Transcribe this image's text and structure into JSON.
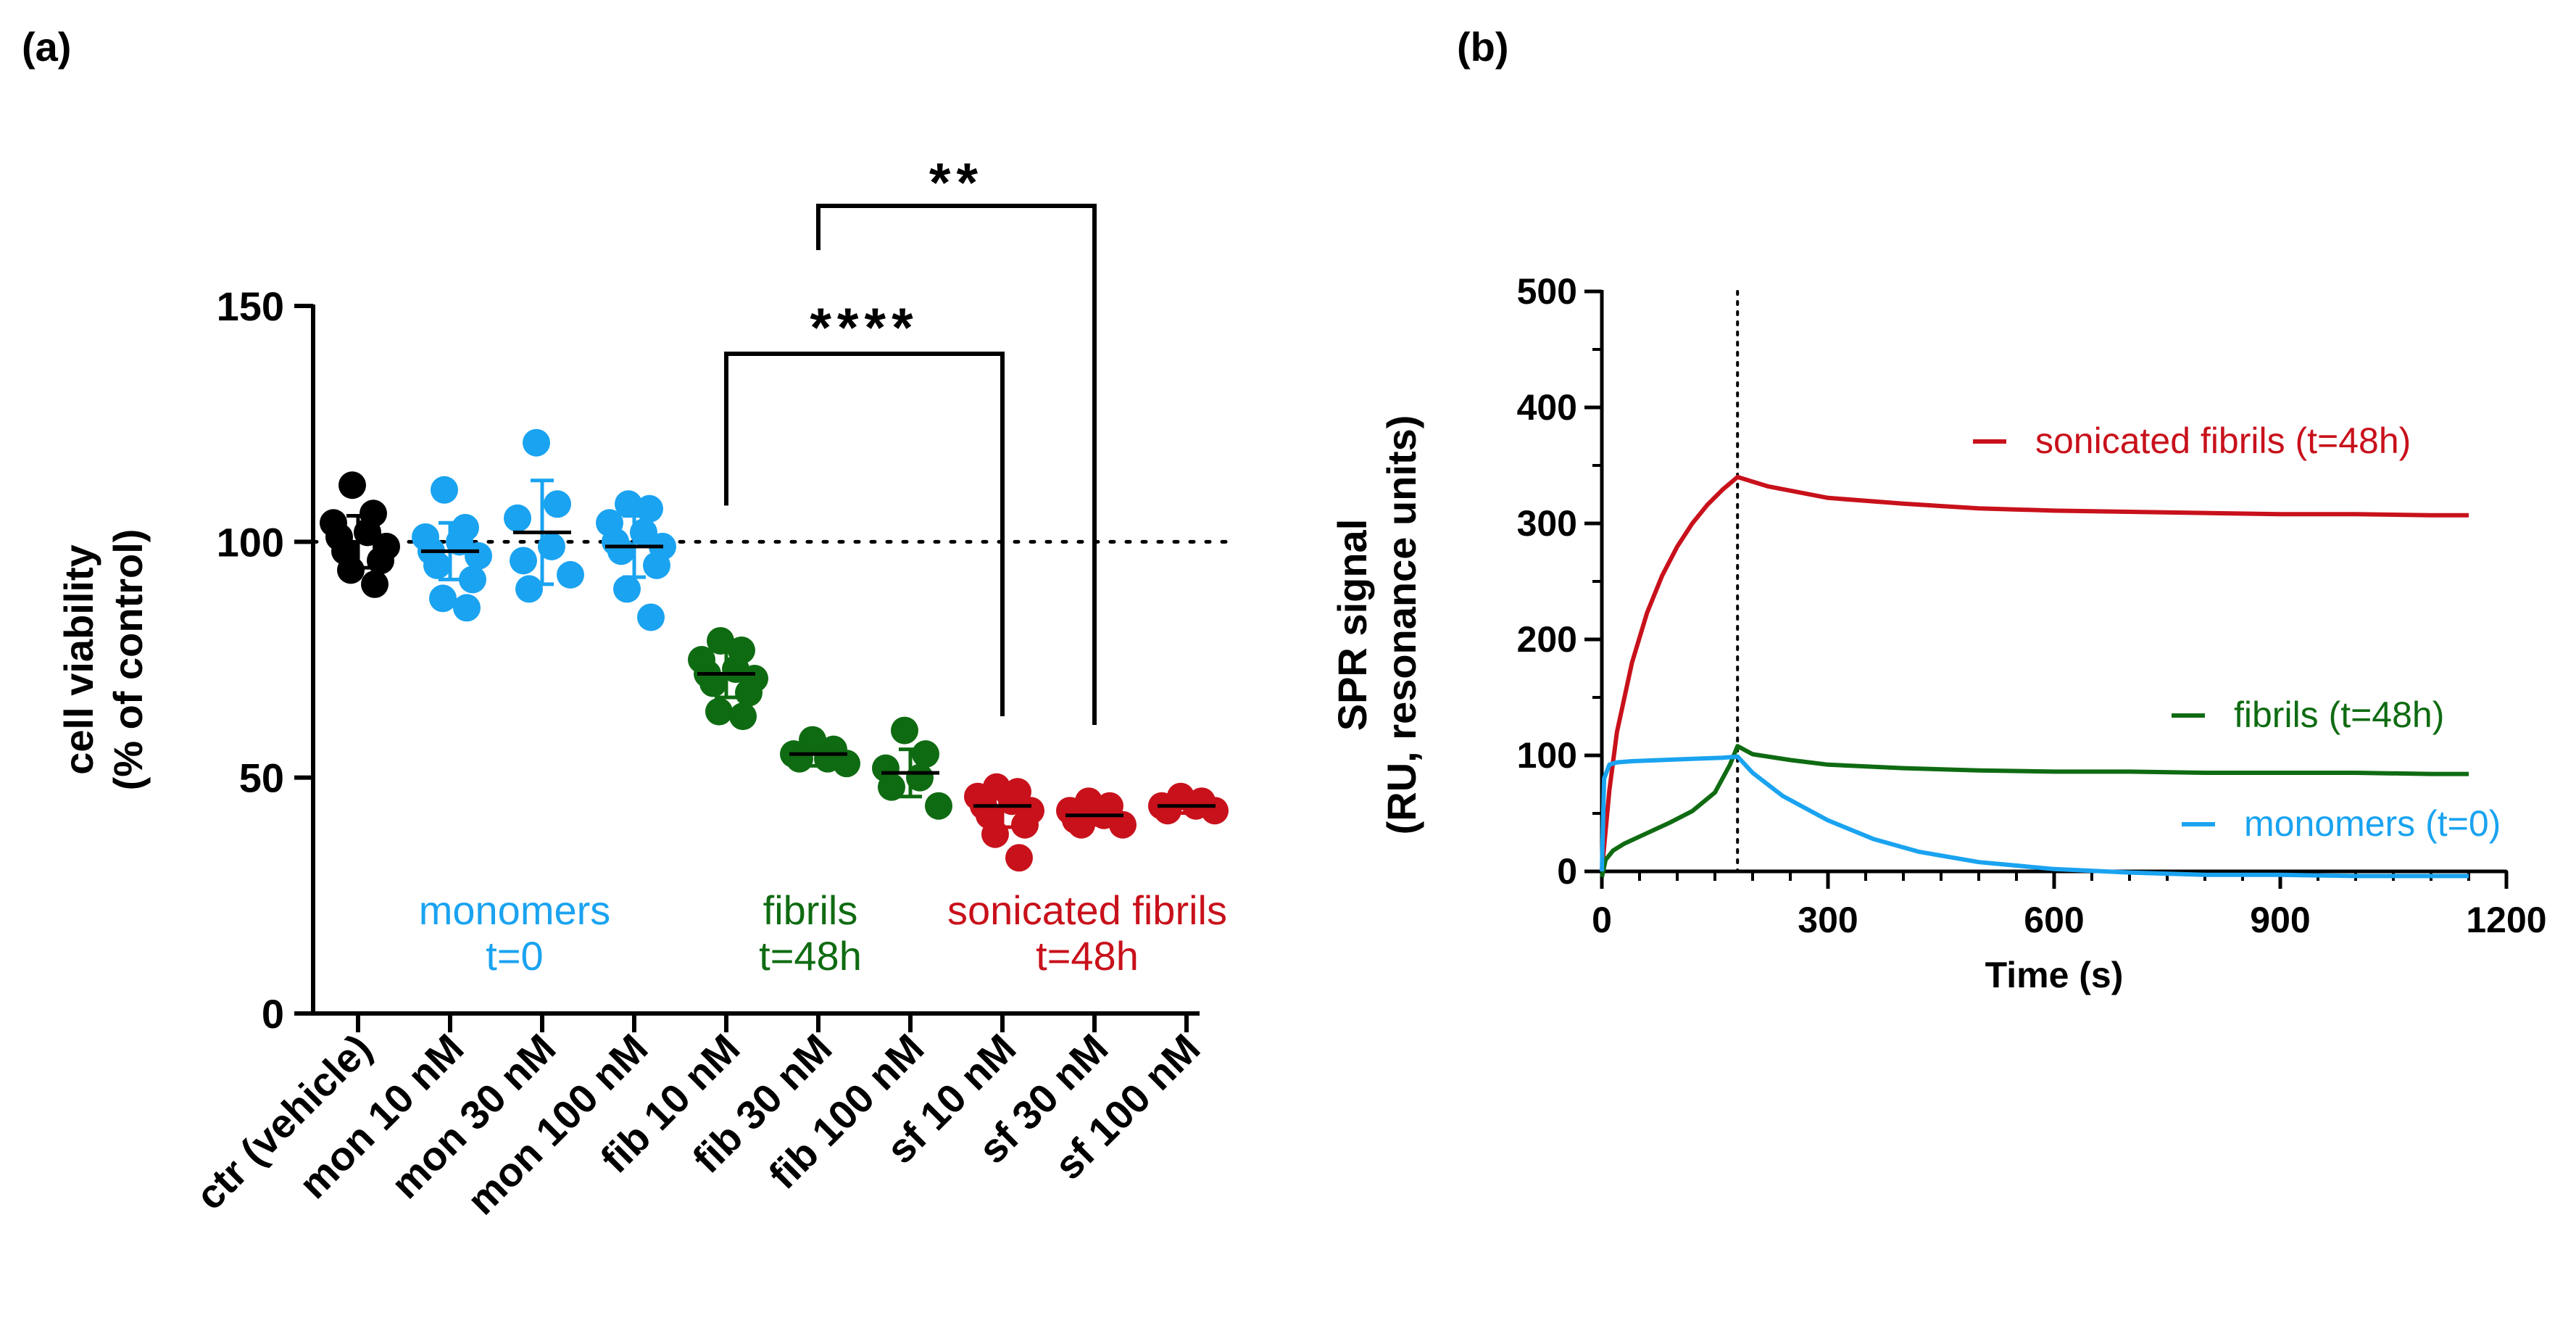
{
  "chart_data": [
    {
      "panel_label": "(a)",
      "type": "scatter",
      "title": "",
      "xlabel": "",
      "ylabel_line1": "cell viability",
      "ylabel_line2": "(% of control)",
      "ylim": [
        0,
        150
      ],
      "yticks": [
        0,
        50,
        100,
        150
      ],
      "reference_line": 100,
      "categories": [
        "ctr (vehicle)",
        "mon 10 nM",
        "mon 30 nM",
        "mon 100 nM",
        "fib 10 nM",
        "fib 30 nM",
        "fib 100 nM",
        "sf 10 nM",
        "sf 30 nM",
        "sf 100 nM"
      ],
      "series": [
        {
          "name": "ctr (vehicle)",
          "group": "control",
          "mean": 100,
          "sd": 5.5,
          "points": [
            112,
            106,
            104,
            102,
            101,
            99,
            98,
            96,
            94,
            91
          ]
        },
        {
          "name": "mon 10 nM",
          "group": "monomers",
          "mean": 98,
          "sd": 6,
          "points": [
            111,
            103,
            101,
            100,
            98,
            97,
            95,
            92,
            88,
            86
          ]
        },
        {
          "name": "mon 30 nM",
          "group": "monomers",
          "mean": 102,
          "sd": 11,
          "points": [
            121,
            108,
            105,
            99,
            96,
            93,
            90
          ]
        },
        {
          "name": "mon 100 nM",
          "group": "monomers",
          "mean": 99,
          "sd": 6.5,
          "points": [
            108,
            107,
            104,
            102,
            100,
            99,
            98,
            95,
            90,
            84
          ]
        },
        {
          "name": "fib 10 nM",
          "group": "fibrils",
          "mean": 72,
          "sd": 5,
          "points": [
            79,
            77,
            75,
            73,
            72,
            71,
            70,
            68,
            64,
            63
          ]
        },
        {
          "name": "fib 30 nM",
          "group": "fibrils",
          "mean": 55,
          "sd": 2.5,
          "points": [
            58,
            56,
            55,
            54,
            54,
            53
          ]
        },
        {
          "name": "fib 100 nM",
          "group": "fibrils",
          "mean": 51,
          "sd": 5,
          "points": [
            60,
            55,
            52,
            50,
            48,
            44
          ]
        },
        {
          "name": "sf 10 nM",
          "group": "sonicated fibrils",
          "mean": 44,
          "sd": 4.5,
          "points": [
            48,
            47,
            46,
            45,
            44,
            43,
            42,
            40,
            38,
            33
          ]
        },
        {
          "name": "sf 30 nM",
          "group": "sonicated fibrils",
          "mean": 42,
          "sd": 2,
          "points": [
            45,
            44,
            43,
            42,
            41,
            40,
            40
          ]
        },
        {
          "name": "sf 100 nM",
          "group": "sonicated fibrils",
          "mean": 44,
          "sd": 1.5,
          "points": [
            46,
            45,
            44,
            44,
            43,
            43
          ]
        }
      ],
      "group_labels": [
        {
          "line1": "monomers",
          "line2": "t=0",
          "color": "#1aa3f0"
        },
        {
          "line1": "fibrils",
          "line2": "t=48h",
          "color": "#0f6b12"
        },
        {
          "line1": "sonicated fibrils",
          "line2": "t=48h",
          "color": "#c8111b"
        }
      ],
      "significance": [
        {
          "from": "fib 10 nM",
          "to": "sf 10 nM",
          "label": "****"
        },
        {
          "from": "fib 30 nM",
          "to": "sf 30 nM",
          "label": "**"
        }
      ]
    },
    {
      "panel_label": "(b)",
      "type": "line",
      "title": "",
      "xlabel": "Time (s)",
      "ylabel_line1": "SPR signal",
      "ylabel_line2": "(RU, resonance units)",
      "xlim": [
        0,
        1200
      ],
      "ylim": [
        0,
        500
      ],
      "xticks": [
        0,
        300,
        600,
        900,
        1200
      ],
      "yticks": [
        0,
        100,
        200,
        300,
        400,
        500
      ],
      "vertical_refs": [
        0,
        180
      ],
      "horizontal_ref": 0,
      "series": [
        {
          "name": "sonicated fibrils (t=48h)",
          "color": "#c8111b",
          "x": [
            0,
            10,
            20,
            40,
            60,
            80,
            100,
            120,
            140,
            160,
            180,
            220,
            300,
            400,
            500,
            600,
            700,
            800,
            900,
            1000,
            1100,
            1150
          ],
          "y": [
            0,
            70,
            120,
            180,
            223,
            255,
            280,
            300,
            316,
            329,
            340,
            332,
            322,
            317,
            313,
            311,
            310,
            309,
            308,
            308,
            307,
            307
          ]
        },
        {
          "name": "fibrils (t=48h)",
          "color": "#0f6b12",
          "x": [
            0,
            5,
            15,
            30,
            60,
            90,
            120,
            150,
            170,
            180,
            200,
            250,
            300,
            400,
            500,
            600,
            700,
            800,
            900,
            1000,
            1100,
            1150
          ],
          "y": [
            -5,
            10,
            18,
            24,
            33,
            42,
            52,
            68,
            92,
            108,
            101,
            96,
            92,
            89,
            87,
            86,
            86,
            85,
            85,
            85,
            84,
            84
          ]
        },
        {
          "name": "monomers (t=0)",
          "color": "#1aa3f0",
          "x": [
            0,
            3,
            10,
            20,
            40,
            80,
            120,
            160,
            180,
            200,
            240,
            300,
            360,
            420,
            500,
            600,
            700,
            800,
            900,
            1000,
            1100,
            1150
          ],
          "y": [
            0,
            80,
            92,
            94,
            95,
            96,
            97,
            98,
            99,
            85,
            65,
            44,
            28,
            17,
            8,
            2,
            -1,
            -3,
            -3,
            -4,
            -4,
            -4
          ]
        }
      ]
    }
  ]
}
